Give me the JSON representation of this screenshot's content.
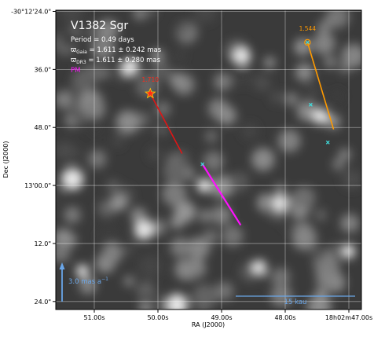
{
  "chart_data": {
    "type": "scatter",
    "title": "V1382 Sgr",
    "info": {
      "period": "Period =   0.49 days",
      "plx1_sym": "ϖ",
      "plx1_sub": "Gaia",
      "plx1_val": " = 1.611 ± 0.242 mas",
      "plx2_sym": "ϖ",
      "plx2_sub": "DR3",
      "plx2_val": " = 1.611 ± 0.280 mas",
      "pm_label": "PM"
    },
    "xlabel": "RA (J2000)",
    "ylabel": "Dec (J2000)",
    "xticks": [
      "51.00s",
      "50.00s",
      "49.00s",
      "48.00s",
      "18h02m47.00s"
    ],
    "yticks": [
      "-30°12'24.0\"",
      "36.0\"",
      "48.0\"",
      "13'00.0\"",
      "12.0\"",
      "24.0\""
    ],
    "target": {
      "ra_s": 50.12,
      "dec_s": 41.0,
      "label": "1.710"
    },
    "target_pm_end": {
      "ra_s": 49.62,
      "dec_s": 53.4
    },
    "companion": {
      "ra_s": 47.65,
      "dec_s": 30.4,
      "label": "1.544"
    },
    "companion_pm_end": {
      "ra_s": 47.24,
      "dec_s": 48.4
    },
    "pm_vector": {
      "start": {
        "ra_s": 49.3,
        "dec_s": 55.6
      },
      "end": {
        "ra_s": 48.7,
        "dec_s": 68.2
      }
    },
    "other_stars": [
      {
        "ra_s": 49.3,
        "dec_s": 55.6
      },
      {
        "ra_s": 47.6,
        "dec_s": 43.3
      },
      {
        "ra_s": 47.33,
        "dec_s": 51.1
      }
    ],
    "scale_arrow_label": "3.0 mas a",
    "scale_arrow_exp": "−1",
    "scale_bar_label": "15 kau",
    "colors": {
      "target": "#ff2a1a",
      "target_pm": "#e01515",
      "companion": "#ff9a00",
      "pm": "#ff10ff",
      "stars": "#40e0e0",
      "scale": "#6aa6e8",
      "label": "#ffffff"
    }
  }
}
